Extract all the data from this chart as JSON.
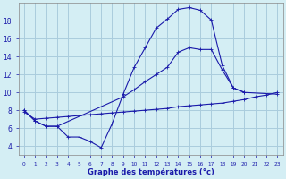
{
  "xlabel": "Graphe des températures (°c)",
  "xlim": [
    -0.5,
    23.5
  ],
  "ylim": [
    3.0,
    20.0
  ],
  "xticks": [
    0,
    1,
    2,
    3,
    4,
    5,
    6,
    7,
    8,
    9,
    10,
    11,
    12,
    13,
    14,
    15,
    16,
    17,
    18,
    19,
    20,
    21,
    22,
    23
  ],
  "yticks": [
    4,
    6,
    8,
    10,
    12,
    14,
    16,
    18
  ],
  "background_color": "#d4eef4",
  "grid_color": "#aaccdd",
  "line_color": "#1a1aaa",
  "line1_x": [
    0,
    1,
    2,
    3,
    4,
    5,
    6,
    7,
    8,
    9,
    10,
    11,
    12,
    13,
    14,
    15,
    16,
    17,
    18,
    19,
    20
  ],
  "line1_y": [
    8.0,
    6.8,
    6.2,
    6.2,
    5.0,
    5.0,
    4.5,
    3.8,
    6.5,
    9.8,
    12.8,
    15.0,
    17.2,
    18.2,
    19.3,
    19.5,
    19.2,
    18.1,
    13.0,
    10.5,
    10.0
  ],
  "line2_x": [
    0,
    1,
    2,
    3,
    9,
    10,
    11,
    12,
    13,
    14,
    15,
    16,
    17,
    18,
    19,
    20,
    23
  ],
  "line2_y": [
    8.0,
    6.8,
    6.2,
    6.2,
    9.5,
    10.3,
    11.2,
    12.0,
    12.8,
    14.5,
    15.0,
    14.8,
    14.8,
    12.5,
    10.5,
    10.0,
    9.8
  ],
  "line3_x": [
    0,
    1,
    2,
    3,
    4,
    5,
    6,
    7,
    8,
    9,
    10,
    11,
    12,
    13,
    14,
    15,
    16,
    17,
    18,
    19,
    20,
    21,
    22,
    23
  ],
  "line3_y": [
    7.8,
    7.0,
    7.1,
    7.2,
    7.3,
    7.4,
    7.5,
    7.6,
    7.7,
    7.8,
    7.9,
    8.0,
    8.1,
    8.2,
    8.4,
    8.5,
    8.6,
    8.7,
    8.8,
    9.0,
    9.2,
    9.5,
    9.7,
    10.0
  ]
}
